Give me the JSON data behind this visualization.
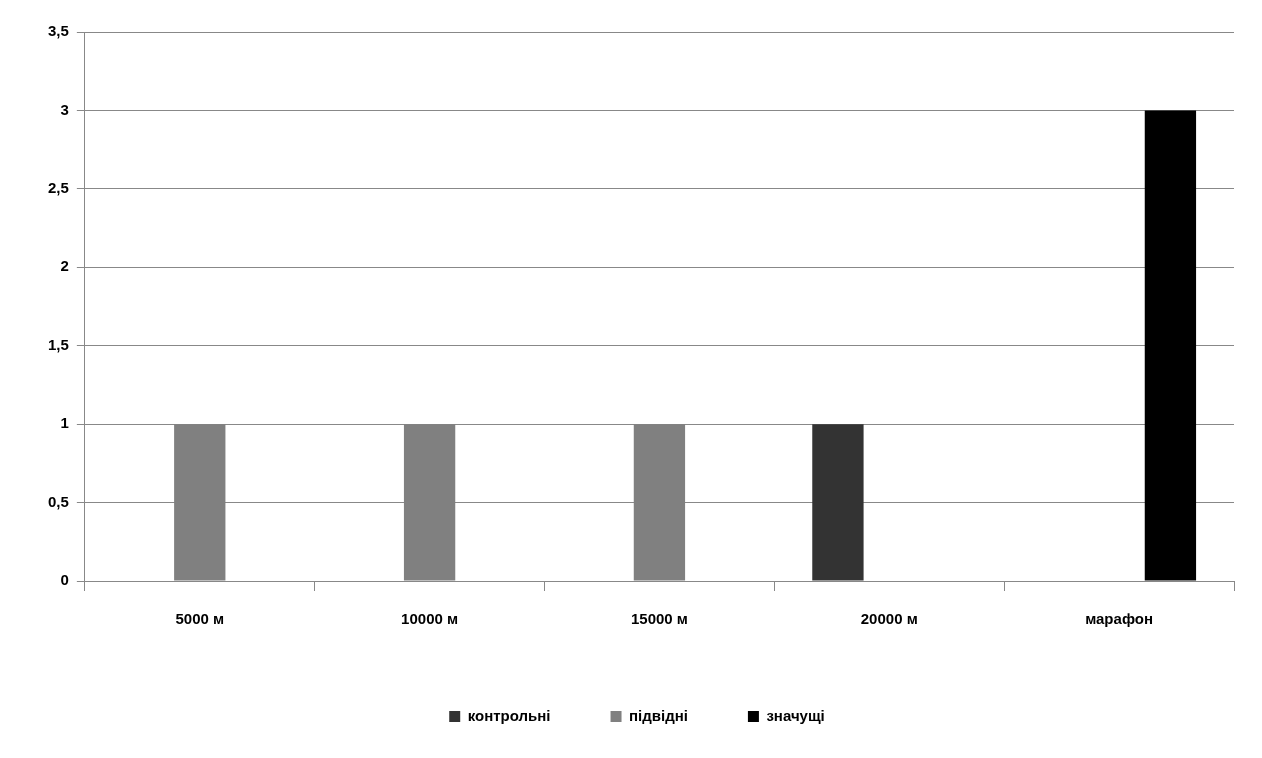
{
  "chart_data": {
    "type": "bar",
    "categories": [
      "5000 м",
      "10000 м",
      "15000 м",
      "20000 м",
      "марафон"
    ],
    "series": [
      {
        "name": "контрольні",
        "color": "#333333",
        "values": [
          null,
          null,
          null,
          1,
          null
        ]
      },
      {
        "name": "підвідні",
        "color": "#808080",
        "values": [
          1,
          1,
          1,
          null,
          null
        ]
      },
      {
        "name": "значущі",
        "color": "#000000",
        "values": [
          null,
          null,
          null,
          null,
          3
        ]
      }
    ],
    "ylim": [
      0,
      3.5
    ],
    "yticks": [
      0,
      {
        "value": 0.5,
        "label": "0,5"
      },
      1,
      {
        "value": 1.5,
        "label": "1,5"
      },
      2,
      {
        "value": 2.5,
        "label": "2,5"
      },
      3,
      {
        "value": 3.5,
        "label": "3,5"
      }
    ],
    "grid": "y",
    "legend": "bottom"
  }
}
